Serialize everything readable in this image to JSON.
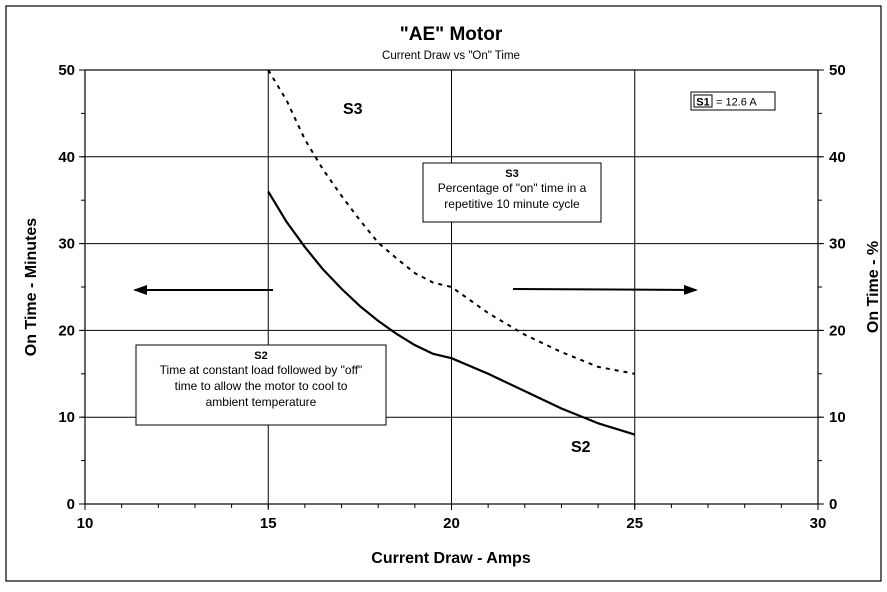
{
  "chart_data": {
    "type": "line",
    "title": "\"AE\" Motor",
    "subtitle": "Current Draw vs \"On\" Time",
    "xlabel": "Current Draw - Amps",
    "ylabel": "On Time - Minutes",
    "y2label": "On Time - %",
    "xlim": [
      10,
      30
    ],
    "ylim": [
      0,
      50
    ],
    "y2lim": [
      0,
      50
    ],
    "x_ticks": [
      "10",
      "15",
      "20",
      "25",
      "30"
    ],
    "y_ticks": [
      "0",
      "10",
      "20",
      "30",
      "40",
      "50"
    ],
    "y2_ticks": [
      "0",
      "10",
      "20",
      "30",
      "40",
      "50"
    ],
    "grid": true,
    "series": [
      {
        "name": "S2",
        "axis": "left",
        "style": "solid",
        "color": "#000000",
        "x": [
          15,
          15.5,
          16,
          16.5,
          17,
          17.5,
          18,
          18.5,
          19,
          19.5,
          20,
          21,
          22,
          23,
          24,
          25
        ],
        "y": [
          36,
          32.5,
          29.6,
          27,
          24.8,
          22.8,
          21.1,
          19.6,
          18.3,
          17.3,
          16.8,
          15,
          13,
          11,
          9.3,
          8
        ]
      },
      {
        "name": "S3",
        "axis": "right",
        "style": "dotted",
        "color": "#000000",
        "x": [
          15,
          15.5,
          16,
          16.5,
          17,
          17.5,
          18,
          18.5,
          19,
          19.5,
          20,
          21,
          22,
          23,
          24,
          25
        ],
        "y": [
          50,
          46.5,
          42,
          38.5,
          35.5,
          32.7,
          30.1,
          28.3,
          26.6,
          25.5,
          25,
          22,
          19.5,
          17.5,
          15.8,
          15
        ]
      }
    ],
    "annotations": {
      "s3_label": "S3",
      "s2_label": "S2",
      "s1_box": {
        "label": "S1",
        "value": "= 12.6 A"
      },
      "s3_box": {
        "title": "S3",
        "lines": [
          "Percentage of \"on\" time in a",
          "repetitive 10 minute cycle"
        ]
      },
      "s2_box": {
        "title": "S2",
        "lines": [
          "Time at constant load followed by \"off\"",
          "time to allow the motor to cool to",
          "ambient temperature"
        ]
      }
    }
  }
}
